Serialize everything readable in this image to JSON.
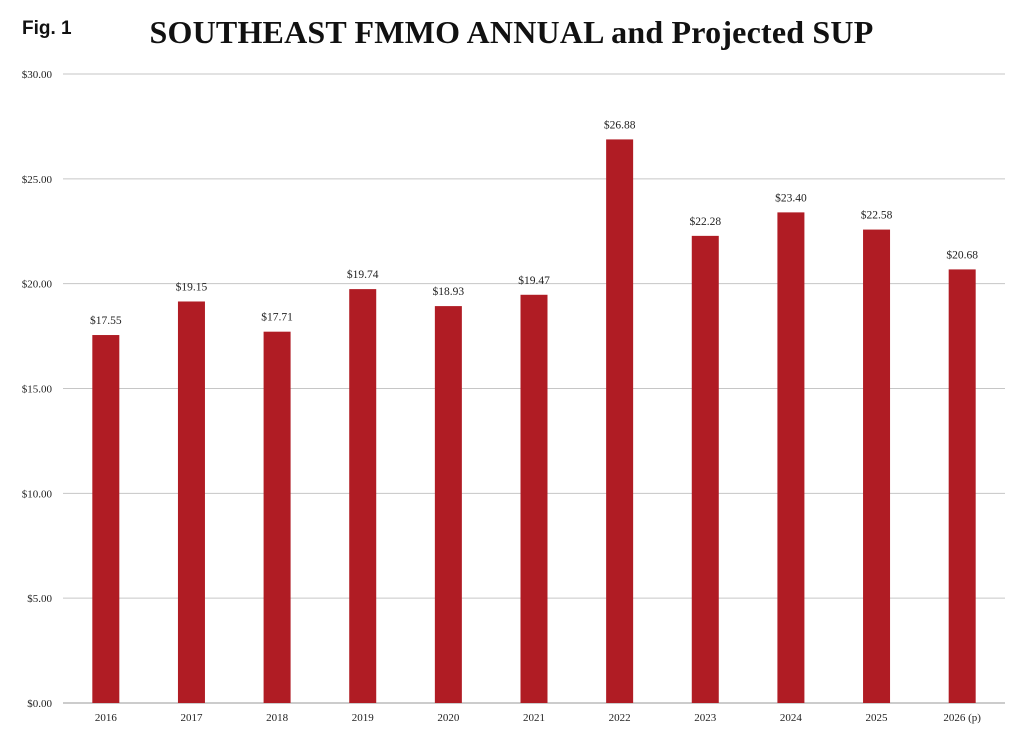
{
  "figure": {
    "label": "Fig. 1",
    "title": "SOUTHEAST FMMO ANNUAL and Projected SUP"
  },
  "colors": {
    "bar": "#B01C24",
    "grid": "#C6C6C6",
    "axis": "#9A9A9A",
    "text": "#222222"
  },
  "chart_data": {
    "type": "bar",
    "title": "SOUTHEAST FMMO ANNUAL and Projected SUP",
    "xlabel": "",
    "ylabel": "",
    "categories": [
      "2016",
      "2017",
      "2018",
      "2019",
      "2020",
      "2021",
      "2022",
      "2023",
      "2024",
      "2025",
      "2026 (p)"
    ],
    "values": [
      17.55,
      19.15,
      17.71,
      19.74,
      18.93,
      19.47,
      26.88,
      22.28,
      23.4,
      22.58,
      20.68
    ],
    "data_labels": [
      "$17.55",
      "$19.15",
      "$17.71",
      "$19.74",
      "$18.93",
      "$19.47",
      "$26.88",
      "$22.28",
      "$23.40",
      "$22.58",
      "$20.68"
    ],
    "ylim": [
      0,
      30
    ],
    "yticks": [
      0,
      5,
      10,
      15,
      20,
      25,
      30
    ],
    "ytick_labels": [
      "$0.00",
      "$5.00",
      "$10.00",
      "$15.00",
      "$20.00",
      "$25.00",
      "$30.00"
    ],
    "grid": true,
    "legend": "none"
  }
}
